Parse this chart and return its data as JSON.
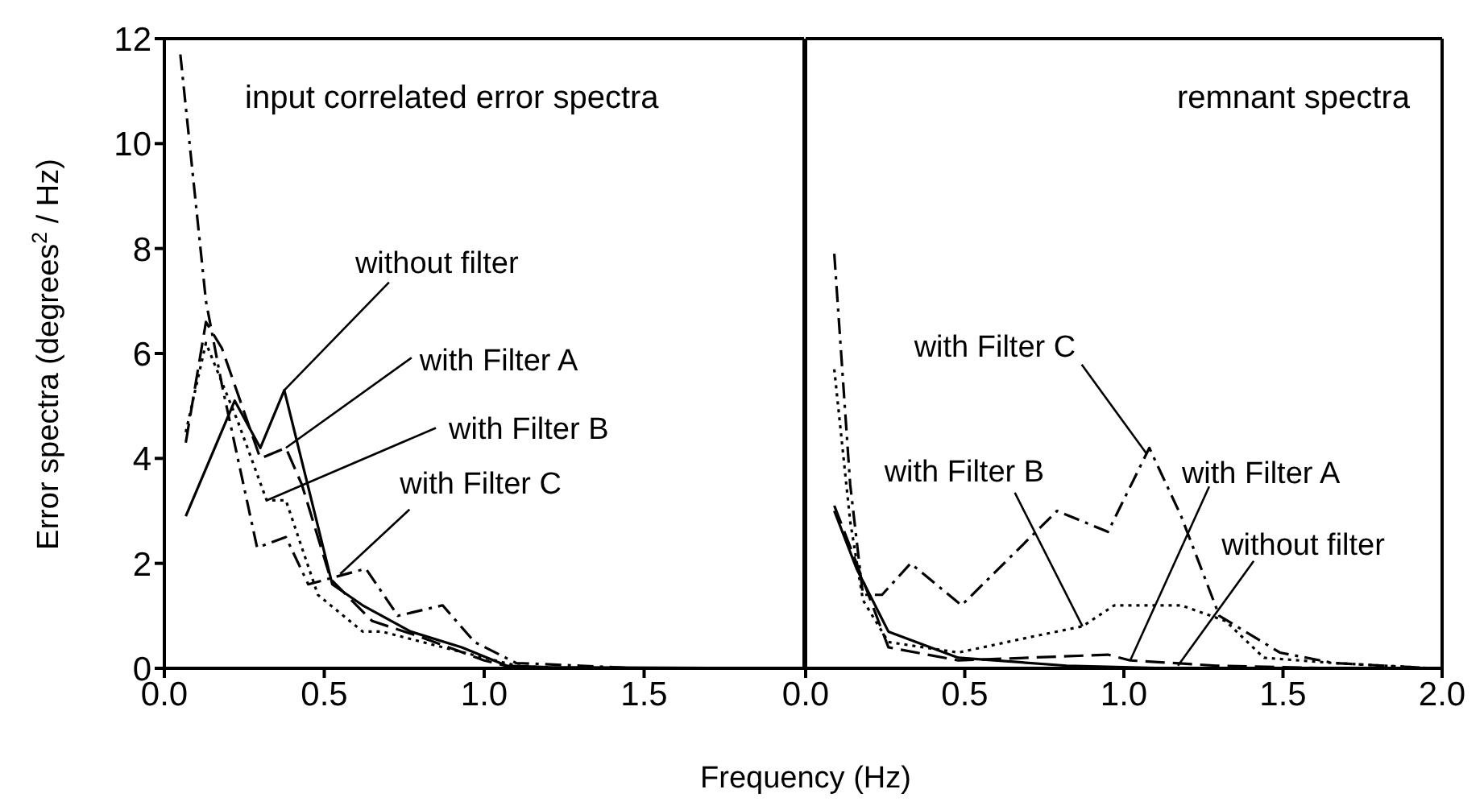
{
  "chart_data": [
    {
      "type": "line",
      "title": "input correlated error spectra",
      "xlabel": "Frequency (Hz)",
      "ylabel": "Error spectra (degrees$^{2}$ / Hz)",
      "xlim": [
        0,
        2
      ],
      "ylim": [
        0,
        12
      ],
      "xticks": [
        {
          "value": 0,
          "label": "0.0"
        },
        {
          "value": 0.5,
          "label": "0.5"
        },
        {
          "value": 1,
          "label": "1.0"
        },
        {
          "value": 1.5,
          "label": "1.5"
        }
      ],
      "yticks": [
        0,
        2,
        4,
        6,
        8,
        10,
        12
      ],
      "series": [
        {
          "color": "#000000",
          "line_style": "solid",
          "x": [
            0.067,
            0.22,
            0.3,
            0.375,
            0.525,
            0.62,
            0.77,
            0.93,
            1.07,
            1.2,
            2.0
          ],
          "values": [
            2.9,
            5.1,
            4.2,
            5.3,
            1.6,
            1.2,
            0.7,
            0.4,
            0.05,
            0.02,
            0
          ]
        },
        {
          "color": "#000000",
          "line_style": "dashed",
          "x": [
            0.067,
            0.13,
            0.18,
            0.3,
            0.38,
            0.43,
            0.52,
            0.65,
            0.8,
            1.0,
            1.1,
            2.0
          ],
          "values": [
            4.3,
            6.6,
            6.1,
            4.0,
            4.2,
            3.5,
            1.7,
            0.9,
            0.6,
            0.15,
            0,
            0
          ]
        },
        {
          "color": "#000000",
          "line_style": "dotted",
          "x": [
            0.067,
            0.13,
            0.23,
            0.32,
            0.38,
            0.48,
            0.62,
            0.68,
            0.87,
            1.1,
            1.23,
            2.0
          ],
          "values": [
            4.5,
            6.2,
            4.7,
            3.2,
            3.2,
            1.4,
            0.7,
            0.7,
            0.4,
            0.05,
            0,
            0
          ]
        },
        {
          "color": "#000000",
          "line_style": "dashdot",
          "x": [
            0.05,
            0.13,
            0.18,
            0.29,
            0.38,
            0.45,
            0.63,
            0.73,
            0.87,
            0.97,
            1.1,
            1.3,
            1.48,
            2.0
          ],
          "values": [
            11.7,
            7.0,
            5.4,
            2.3,
            2.5,
            1.6,
            1.9,
            1.0,
            1.2,
            0.5,
            0.1,
            0.05,
            0,
            0
          ]
        }
      ],
      "annotations": [
        {
          "text": "without filter",
          "x": 0.375,
          "y": 5.3
        },
        {
          "text": "with Filter A",
          "x": 0.38,
          "y": 4.2
        },
        {
          "text": "with Filter B",
          "x": 0.32,
          "y": 3.2
        },
        {
          "text": "with Filter C",
          "x": 0.55,
          "y": 1.8
        }
      ]
    },
    {
      "type": "line",
      "title": "remnant spectra",
      "xlim": [
        0,
        2
      ],
      "ylim": [
        0,
        12
      ],
      "xticks": [
        {
          "value": 0,
          "label": "0.0"
        },
        {
          "value": 0.5,
          "label": "0.5"
        },
        {
          "value": 1,
          "label": "1.0"
        },
        {
          "value": 1.5,
          "label": "1.5"
        },
        {
          "value": 2,
          "label": "2.0"
        }
      ],
      "yticks": [
        0,
        2,
        4,
        6,
        8,
        10,
        12
      ],
      "tick_labels": "x",
      "series": [
        {
          "color": "#000000",
          "line_style": "solid",
          "x": [
            0.09,
            0.16,
            0.26,
            0.48,
            0.82,
            1.15,
            2.0
          ],
          "values": [
            3.0,
            1.9,
            0.7,
            0.2,
            0.05,
            0,
            0
          ]
        },
        {
          "color": "#000000",
          "line_style": "dashed",
          "x": [
            0.09,
            0.16,
            0.26,
            0.48,
            0.95,
            1.02,
            1.29,
            1.66,
            2.0
          ],
          "values": [
            3.1,
            2.0,
            0.4,
            0.15,
            0.26,
            0.15,
            0.05,
            0,
            0
          ]
        },
        {
          "color": "#000000",
          "line_style": "dotted",
          "x": [
            0.09,
            0.14,
            0.18,
            0.26,
            0.48,
            0.71,
            0.87,
            0.97,
            1.18,
            1.32,
            1.44,
            1.66,
            1.97
          ],
          "values": [
            5.7,
            2.8,
            1.3,
            0.5,
            0.3,
            0.6,
            0.8,
            1.2,
            1.2,
            0.9,
            0.2,
            0.1,
            0
          ]
        },
        {
          "color": "#000000",
          "line_style": "dashdot",
          "x": [
            0.09,
            0.14,
            0.18,
            0.24,
            0.33,
            0.49,
            0.79,
            0.95,
            1.08,
            1.18,
            1.3,
            1.49,
            1.66,
            1.97
          ],
          "values": [
            7.9,
            3.5,
            1.4,
            1.4,
            2.0,
            1.2,
            3.0,
            2.6,
            4.2,
            2.9,
            1.0,
            0.3,
            0.1,
            0
          ]
        }
      ],
      "annotations": [
        {
          "text": "with Filter C",
          "x": 1.07,
          "y": 4.1
        },
        {
          "text": "with Filter B",
          "x": 0.87,
          "y": 0.8
        },
        {
          "text": "with Filter A",
          "x": 1.02,
          "y": 0.15
        },
        {
          "text": "without filter",
          "x": 1.17,
          "y": 0.05
        }
      ]
    }
  ]
}
